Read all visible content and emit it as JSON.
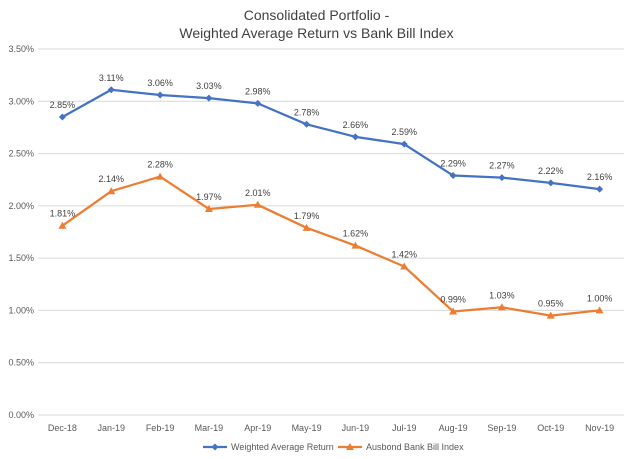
{
  "chart_data": {
    "type": "line",
    "title": [
      "Consolidated Portfolio -",
      "Weighted Average Return vs Bank Bill Index"
    ],
    "categories": [
      "Dec-18",
      "Jan-19",
      "Feb-19",
      "Mar-19",
      "Apr-19",
      "May-19",
      "Jun-19",
      "Jul-19",
      "Aug-19",
      "Sep-19",
      "Oct-19",
      "Nov-19"
    ],
    "series": [
      {
        "name": "Weighted Average Return",
        "color": "#4472c4",
        "marker": "diamond",
        "values": [
          2.85,
          3.11,
          3.06,
          3.03,
          2.98,
          2.78,
          2.66,
          2.59,
          2.29,
          2.27,
          2.22,
          2.16
        ],
        "labels": [
          "2.85%",
          "3.11%",
          "3.06%",
          "3.03%",
          "2.98%",
          "2.78%",
          "2.66%",
          "2.59%",
          "2.29%",
          "2.27%",
          "2.22%",
          "2.16%"
        ]
      },
      {
        "name": "Ausbond Bank Bill Index",
        "color": "#ed7d31",
        "marker": "triangle",
        "values": [
          1.81,
          2.14,
          2.28,
          1.97,
          2.01,
          1.79,
          1.62,
          1.42,
          0.99,
          1.03,
          0.95,
          1.0
        ],
        "labels": [
          "1.81%",
          "2.14%",
          "2.28%",
          "1.97%",
          "2.01%",
          "1.79%",
          "1.62%",
          "1.42%",
          "0.99%",
          "1.03%",
          "0.95%",
          "1.00%"
        ]
      }
    ],
    "ylim": [
      0,
      3.5
    ],
    "yticks": [
      0,
      0.5,
      1.0,
      1.5,
      2.0,
      2.5,
      3.0,
      3.5
    ],
    "ytick_labels": [
      "0.00%",
      "0.50%",
      "1.00%",
      "1.50%",
      "2.00%",
      "2.50%",
      "3.00%",
      "3.50%"
    ],
    "grid": true,
    "legend_position": "bottom"
  }
}
